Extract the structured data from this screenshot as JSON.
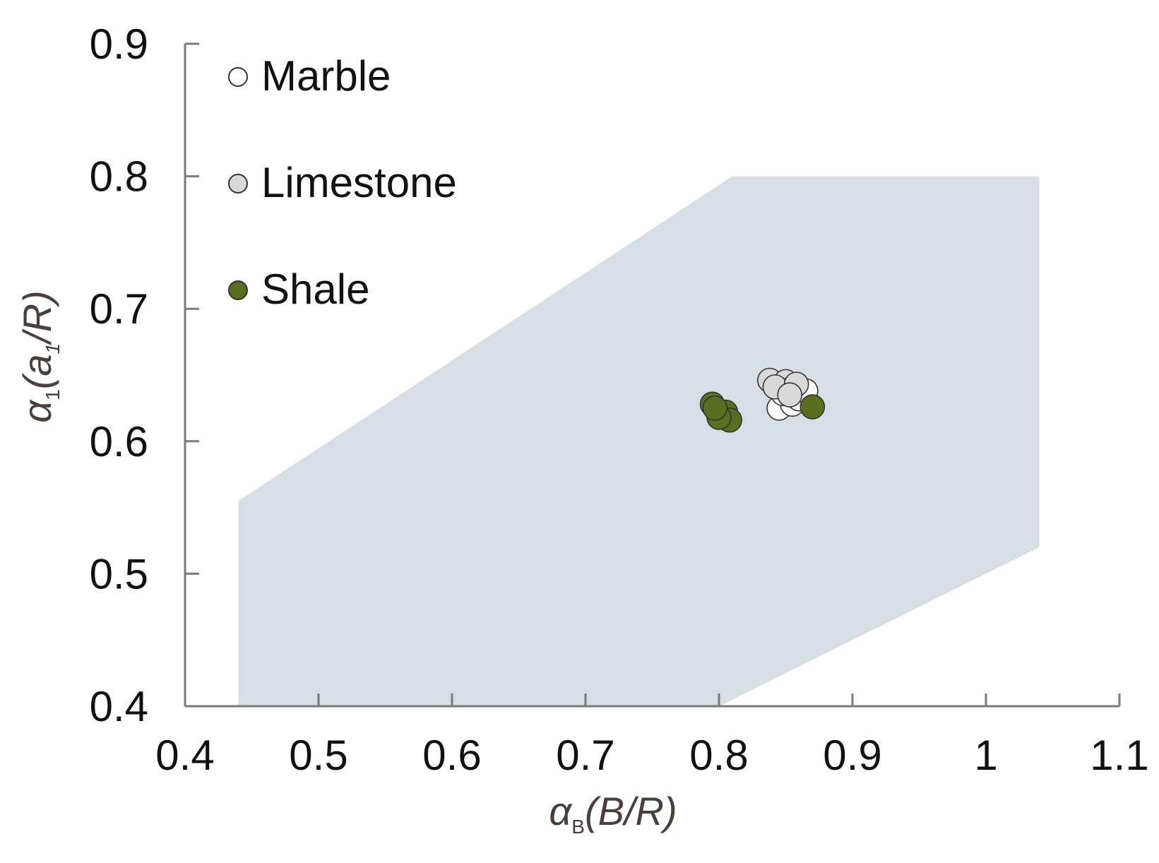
{
  "chart_data": {
    "type": "scatter",
    "xlabel": {
      "greek": "α",
      "sub": "B",
      "rest": "(B/R)"
    },
    "ylabel": {
      "greek": "α",
      "sub": "1",
      "rest_pre": "(a",
      "rest_sub": "1",
      "rest_post": "/R)"
    },
    "xlim": [
      0.4,
      1.1
    ],
    "ylim": [
      0.4,
      0.9
    ],
    "x_ticks": [
      "0.4",
      "0.5",
      "0.6",
      "0.7",
      "0.8",
      "0.9",
      "1",
      "1.1"
    ],
    "y_ticks": [
      "0.4",
      "0.5",
      "0.6",
      "0.7",
      "0.8",
      "0.9"
    ],
    "grid": false,
    "legend_position": "top-left",
    "region": {
      "color": "#d6dfe6",
      "polygon": [
        [
          0.44,
          0.555
        ],
        [
          0.81,
          0.8
        ],
        [
          1.04,
          0.8
        ],
        [
          1.04,
          0.52
        ],
        [
          0.8,
          0.4
        ],
        [
          0.44,
          0.4
        ]
      ]
    },
    "series": [
      {
        "name": "Marble",
        "color": "#ffffff",
        "points": [
          [
            0.845,
            0.625
          ],
          [
            0.855,
            0.628
          ],
          [
            0.86,
            0.632
          ],
          [
            0.865,
            0.638
          ],
          [
            0.852,
            0.642
          ],
          [
            0.848,
            0.636
          ]
        ]
      },
      {
        "name": "Limestone",
        "color": "#d9d9d9",
        "points": [
          [
            0.838,
            0.646
          ],
          [
            0.85,
            0.645
          ],
          [
            0.855,
            0.64
          ],
          [
            0.842,
            0.641
          ],
          [
            0.858,
            0.643
          ],
          [
            0.853,
            0.635
          ]
        ]
      },
      {
        "name": "Shale",
        "color": "#5a6e1f",
        "points": [
          [
            0.795,
            0.628
          ],
          [
            0.805,
            0.622
          ],
          [
            0.808,
            0.616
          ],
          [
            0.8,
            0.618
          ],
          [
            0.797,
            0.625
          ],
          [
            0.87,
            0.626
          ]
        ]
      }
    ]
  }
}
